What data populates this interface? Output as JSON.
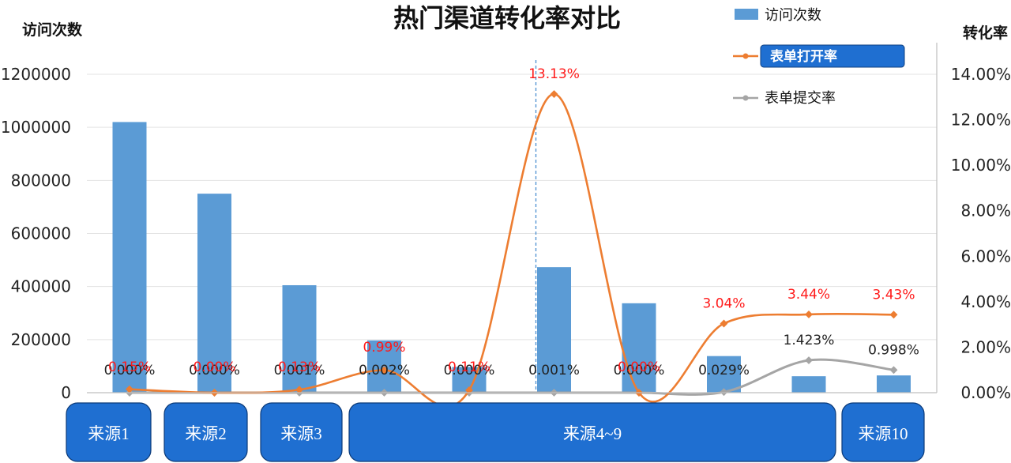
{
  "chart_data": {
    "type": "bar",
    "title": "热门渠道转化率对比",
    "y_left_label": "访问次数",
    "y_right_label": "转化率",
    "y_left_ticks": [
      "0",
      "200000",
      "400000",
      "600000",
      "800000",
      "1000000",
      "1200000"
    ],
    "y_right_ticks": [
      "0.00%",
      "2.00%",
      "4.00%",
      "6.00%",
      "8.00%",
      "10.00%",
      "12.00%",
      "14.00%"
    ],
    "ylim_left": [
      0,
      1200000
    ],
    "ylim_right": [
      0,
      14
    ],
    "grid": true,
    "legend_position": "top-right",
    "categories": [
      "1",
      "2",
      "3",
      "4",
      "5",
      "6",
      "7",
      "8",
      "9",
      "10"
    ],
    "series": [
      {
        "name": "访问次数",
        "kind": "bar",
        "axis": "left",
        "color": "#5b9bd5",
        "values": [
          1020000,
          750000,
          405000,
          197000,
          97000,
          473000,
          337000,
          138000,
          62000,
          65000
        ]
      },
      {
        "name": "表单打开率",
        "kind": "line",
        "axis": "right",
        "color": "#ed7d31",
        "values": [
          0.15,
          0.0,
          0.13,
          0.99,
          0.11,
          13.13,
          0.0,
          3.04,
          3.44,
          3.43
        ],
        "labels": [
          "0.15%",
          "0.00%",
          "0.13%",
          "0.99%",
          "0.11%",
          "13.13%",
          "0.00%",
          "3.04%",
          "3.44%",
          "3.43%"
        ]
      },
      {
        "name": "表单提交率",
        "kind": "line",
        "axis": "right",
        "color": "#a5a5a5",
        "values": [
          0.0,
          0.0,
          0.001,
          0.002,
          0.0,
          0.001,
          0.0,
          0.029,
          1.423,
          0.998
        ],
        "labels": [
          "0.000%",
          "0.000%",
          "0.001%",
          "0.002%",
          "0.000%",
          "0.001%",
          "0.000%",
          "0.029%",
          "1.423%",
          "0.998%"
        ]
      }
    ],
    "highlight_category": "6",
    "source_groups": [
      {
        "label": "来源1",
        "from": 1,
        "to": 1
      },
      {
        "label": "来源2",
        "from": 2,
        "to": 2
      },
      {
        "label": "来源3",
        "from": 3,
        "to": 3
      },
      {
        "label": "来源4~9",
        "from": 4,
        "to": 9
      },
      {
        "label": "来源10",
        "from": 10,
        "to": 10
      }
    ]
  }
}
